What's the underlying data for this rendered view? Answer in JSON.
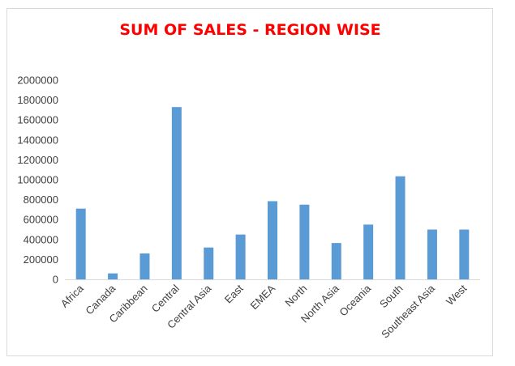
{
  "chart_data": {
    "type": "bar",
    "title": "SUM OF SALES - REGION WISE",
    "title_color": "#ff0000",
    "bar_color": "#5b9bd5",
    "categories": [
      "Africa",
      "Canada",
      "Caribbean",
      "Central",
      "Central Asia",
      "East",
      "EMEA",
      "North",
      "North Asia",
      "Oceania",
      "South",
      "Southeast Asia",
      "West"
    ],
    "values": [
      710000,
      60000,
      260000,
      1730000,
      320000,
      450000,
      785000,
      750000,
      365000,
      550000,
      1035000,
      500000,
      500000
    ],
    "y_ticks": [
      "0",
      "200000",
      "400000",
      "600000",
      "800000",
      "1000000",
      "1200000",
      "1400000",
      "1600000",
      "1800000",
      "2000000"
    ],
    "ylim": [
      0,
      2000000
    ],
    "grid": false,
    "legend": "none"
  }
}
